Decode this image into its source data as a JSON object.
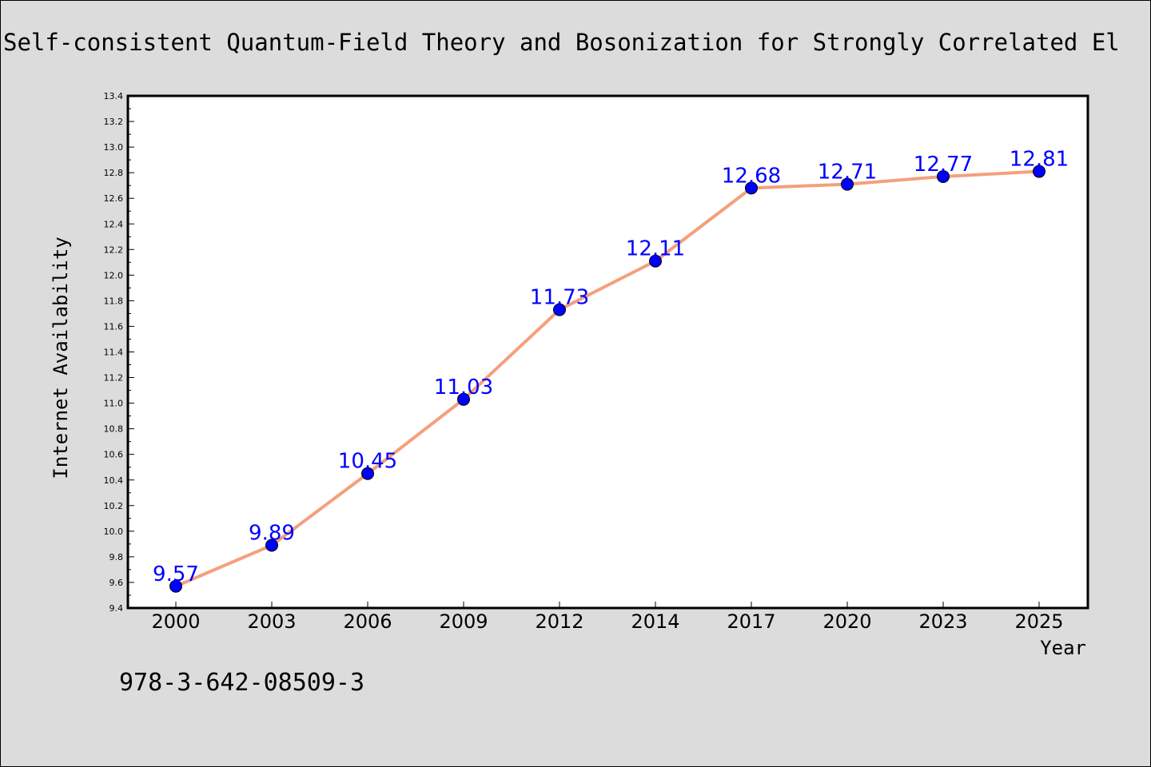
{
  "chart_data": {
    "type": "line",
    "title": "Self-consistent Quantum-Field Theory and Bosonization for Strongly Correlated El",
    "xlabel": "Year",
    "ylabel": "Internet Availability",
    "categories": [
      "2000",
      "2003",
      "2006",
      "2009",
      "2012",
      "2014",
      "2017",
      "2020",
      "2023",
      "2025"
    ],
    "series": [
      {
        "name": "",
        "values": [
          9.57,
          9.89,
          10.45,
          11.03,
          11.73,
          12.11,
          12.68,
          12.71,
          12.77,
          12.81
        ],
        "labels": [
          "9.57",
          "9.89",
          "10.45",
          "11.03",
          "11.73",
          "12.11",
          "12.68",
          "12.71",
          "12.77",
          "12.81"
        ]
      }
    ],
    "ylim": [
      9.4,
      13.4
    ],
    "yticks": [
      "9.4",
      "9.6",
      "9.8",
      "10.0",
      "10.2",
      "10.4",
      "10.6",
      "10.8",
      "11.0",
      "11.2",
      "11.4",
      "11.6",
      "11.8",
      "12.0",
      "12.2",
      "12.4",
      "12.6",
      "12.8",
      "13.0",
      "13.2",
      "13.4"
    ],
    "grid": false,
    "colors": {
      "line": "#f4a07c",
      "marker": "#0000ff",
      "label": "#0000ff"
    }
  },
  "annotation": "978-3-642-08509-3"
}
